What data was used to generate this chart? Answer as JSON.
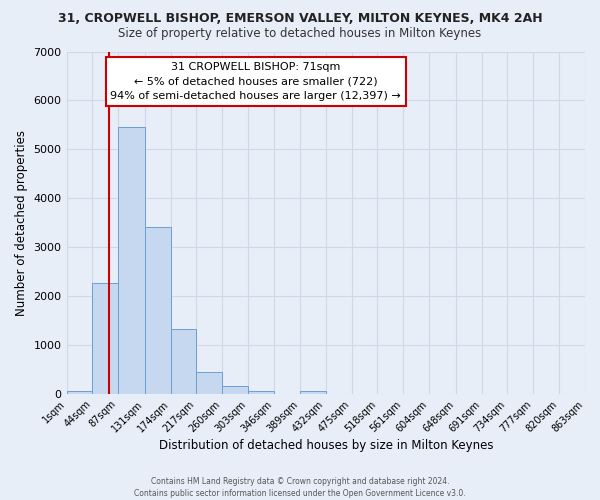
{
  "title1": "31, CROPWELL BISHOP, EMERSON VALLEY, MILTON KEYNES, MK4 2AH",
  "title2": "Size of property relative to detached houses in Milton Keynes",
  "xlabel": "Distribution of detached houses by size in Milton Keynes",
  "ylabel": "Number of detached properties",
  "bin_edges": [
    1,
    44,
    87,
    131,
    174,
    217,
    260,
    303,
    346,
    389,
    432,
    475,
    518,
    561,
    604,
    648,
    691,
    734,
    777,
    820,
    863
  ],
  "bar_heights": [
    70,
    2270,
    5450,
    3420,
    1340,
    460,
    165,
    65,
    0,
    55,
    0,
    0,
    0,
    0,
    0,
    0,
    0,
    0,
    0,
    0
  ],
  "bar_color": "#c5d8f0",
  "bar_edge_color": "#6b9fd4",
  "property_size": 71,
  "vline_color": "#cc0000",
  "ylim": [
    0,
    7000
  ],
  "yticks": [
    0,
    1000,
    2000,
    3000,
    4000,
    5000,
    6000,
    7000
  ],
  "annotation_title": "31 CROPWELL BISHOP: 71sqm",
  "annotation_line1": "← 5% of detached houses are smaller (722)",
  "annotation_line2": "94% of semi-detached houses are larger (12,397) →",
  "annotation_box_facecolor": "#ffffff",
  "annotation_box_edgecolor": "#cc0000",
  "footer1": "Contains HM Land Registry data © Crown copyright and database right 2024.",
  "footer2": "Contains public sector information licensed under the Open Government Licence v3.0.",
  "background_color": "#e8eef8",
  "grid_color": "#d0d8e8",
  "spine_color": "#aabbcc"
}
